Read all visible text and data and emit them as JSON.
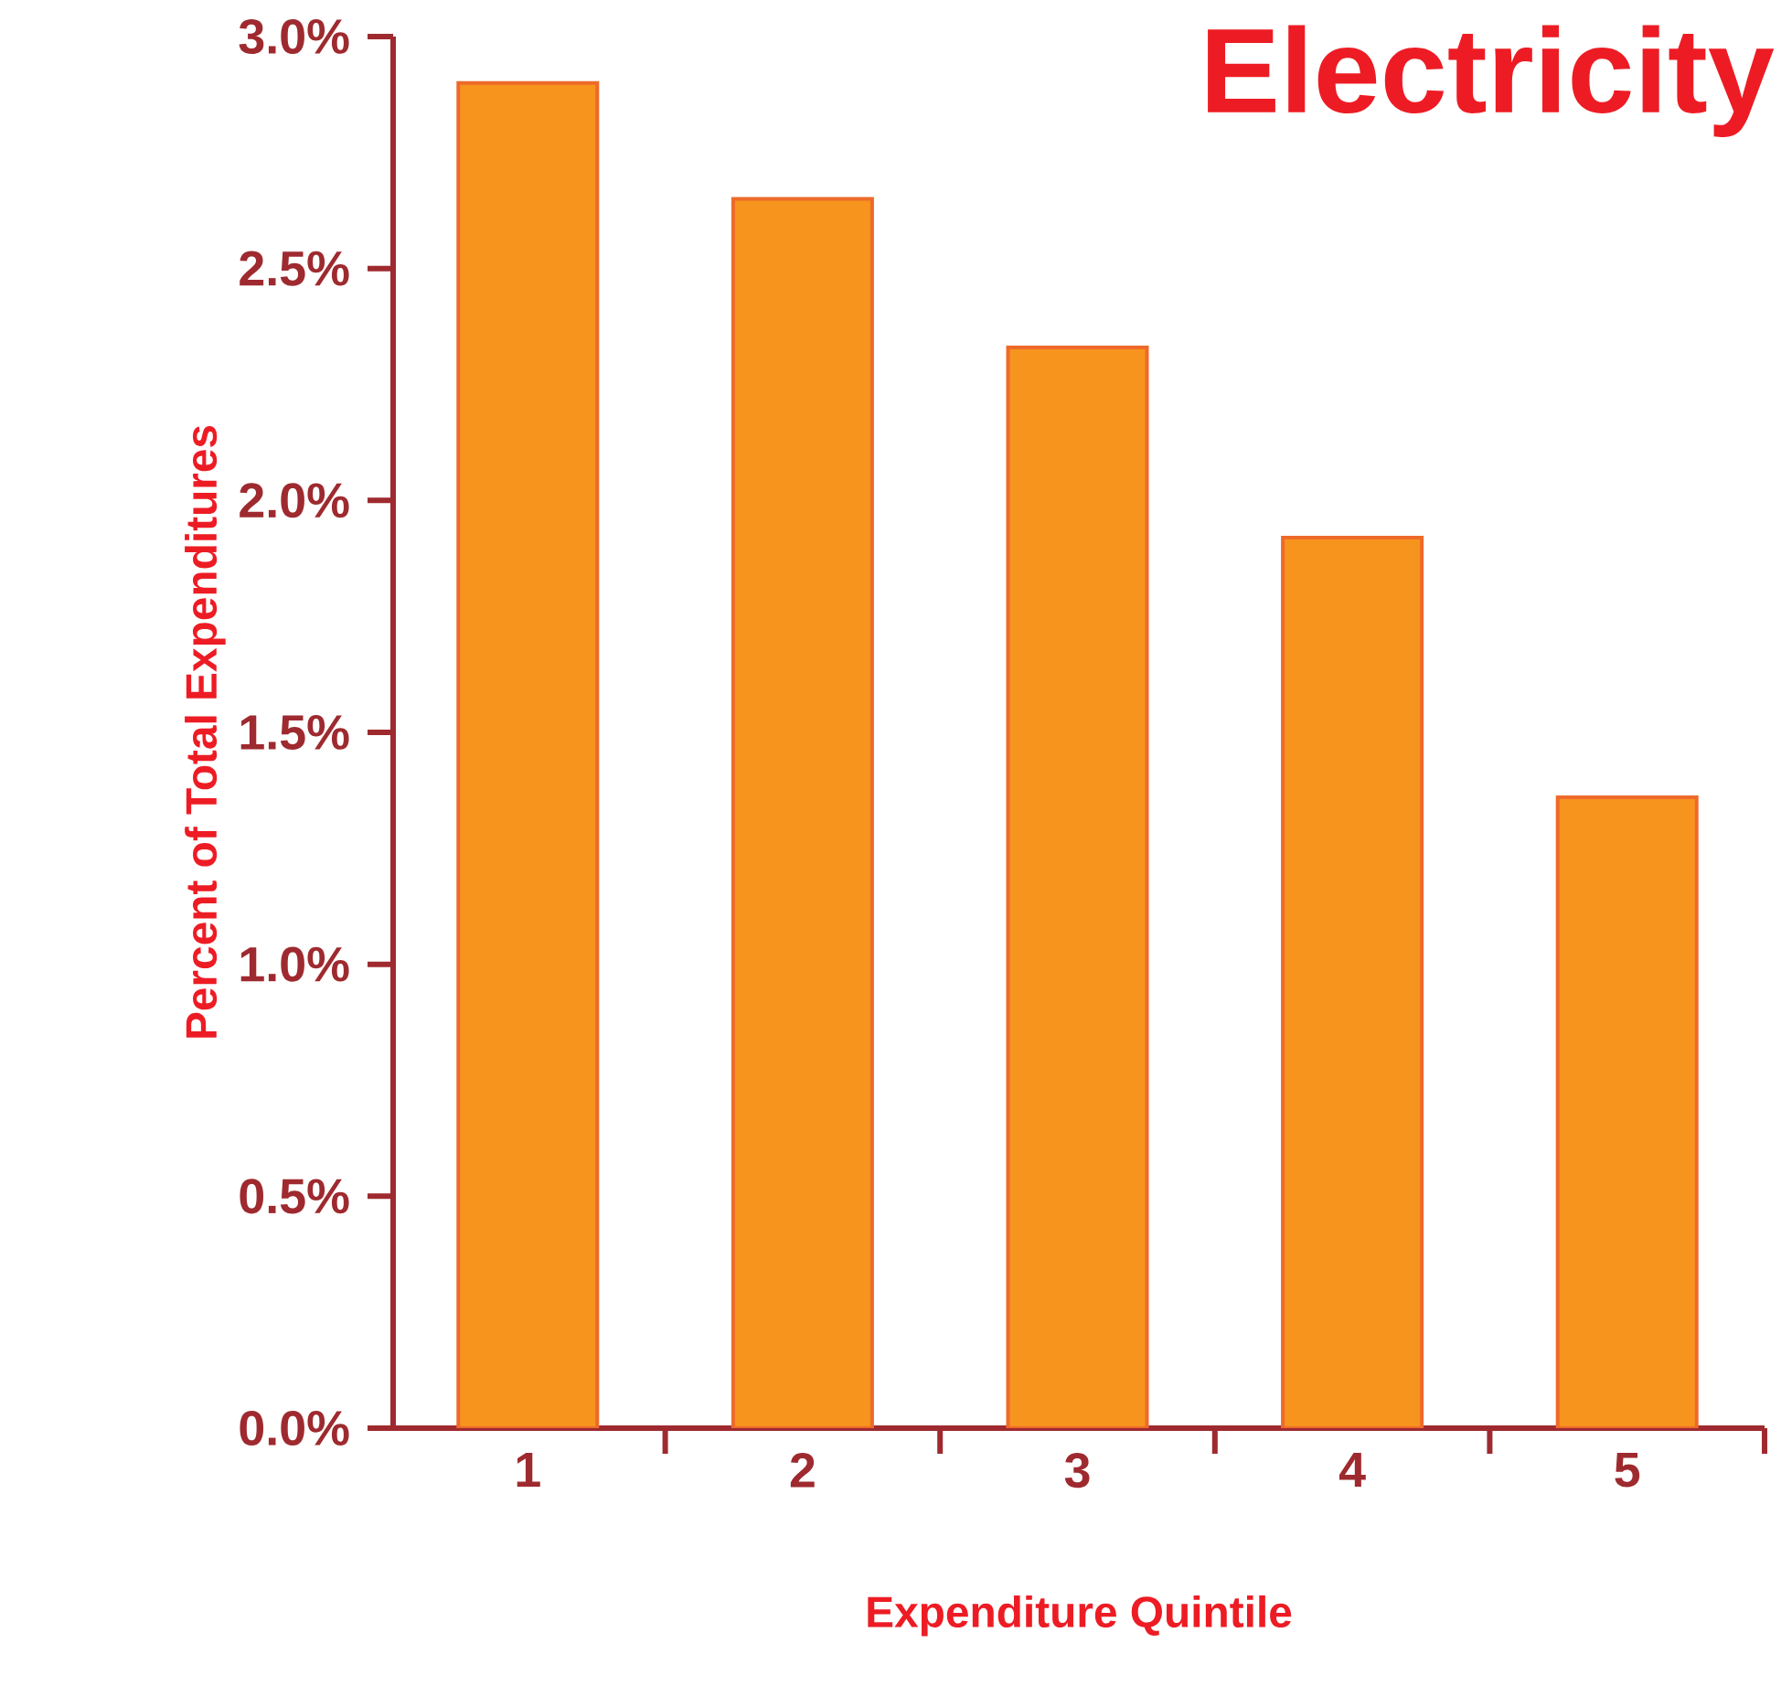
{
  "chart_data": {
    "type": "bar",
    "title": "Electricity",
    "xlabel": "Expenditure Quintile",
    "ylabel": "Percent of Total Expenditures",
    "categories": [
      "1",
      "2",
      "3",
      "4",
      "5"
    ],
    "values": [
      2.9,
      2.65,
      2.33,
      1.92,
      1.36
    ],
    "color": "#f7941d",
    "ylim": [
      0,
      3
    ],
    "yticks": [
      {
        "value": 0,
        "label": "0.0%"
      },
      {
        "value": 0.5,
        "label": "0.5%"
      },
      {
        "value": 1,
        "label": "1.0%"
      },
      {
        "value": 1.5,
        "label": "1.5%"
      },
      {
        "value": 2,
        "label": "2.0%"
      },
      {
        "value": 2.5,
        "label": "2.5%"
      },
      {
        "value": 3,
        "label": "3.0%"
      }
    ],
    "grid": false
  }
}
